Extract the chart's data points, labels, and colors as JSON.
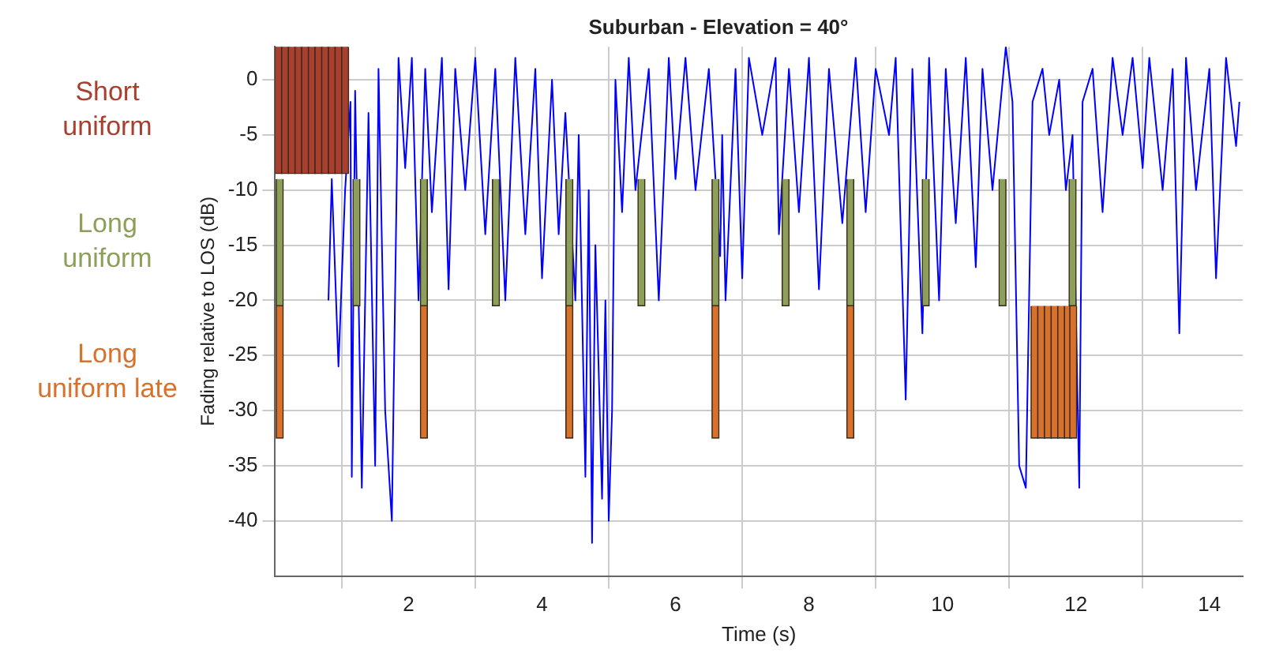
{
  "chart_data": {
    "type": "line",
    "title": "Suburban - Elevation = 40°",
    "xlabel": "Time (s)",
    "ylabel": "Fading relative to LOS (dB)",
    "xlim": [
      0,
      14.5
    ],
    "xticks": [
      2,
      4,
      6,
      8,
      10,
      12,
      14
    ],
    "ylim": [
      -45,
      3
    ],
    "yticks": [
      -40,
      -35,
      -30,
      -25,
      -20,
      -15,
      -10,
      -5,
      0
    ],
    "grid": true,
    "series": [
      {
        "color": "#0000ff",
        "x": [
          0.8,
          0.85,
          0.95,
          1.05,
          1.13,
          1.15,
          1.2,
          1.3,
          1.4,
          1.5,
          1.55,
          1.65,
          1.75,
          1.85,
          1.95,
          2.05,
          2.15,
          2.25,
          2.35,
          2.5,
          2.6,
          2.7,
          2.85,
          3.0,
          3.15,
          3.3,
          3.45,
          3.6,
          3.75,
          3.9,
          4.0,
          4.15,
          4.25,
          4.35,
          4.5,
          4.55,
          4.65,
          4.7,
          4.75,
          4.8,
          4.9,
          4.95,
          5.0,
          5.05,
          5.1,
          5.2,
          5.3,
          5.4,
          5.6,
          5.75,
          5.9,
          6.0,
          6.15,
          6.3,
          6.5,
          6.67,
          6.7,
          6.75,
          6.9,
          7.0,
          7.1,
          7.3,
          7.5,
          7.55,
          7.7,
          7.85,
          8.0,
          8.15,
          8.3,
          8.5,
          8.7,
          8.85,
          9.0,
          9.2,
          9.3,
          9.45,
          9.55,
          9.7,
          9.8,
          9.95,
          10.05,
          10.2,
          10.35,
          10.5,
          10.6,
          10.75,
          10.95,
          11.05,
          11.15,
          11.25,
          11.35,
          11.5,
          11.6,
          11.75,
          11.85,
          11.95,
          12.05,
          12.1,
          12.25,
          12.4,
          12.55,
          12.7,
          12.85,
          13.0,
          13.1,
          13.3,
          13.45,
          13.55,
          13.65,
          13.8,
          14.0,
          14.1,
          14.25,
          14.4,
          14.45
        ],
        "values": [
          -20,
          -9,
          -26,
          -10,
          -2,
          -36,
          -1,
          -37,
          -3,
          -35,
          1,
          -30,
          -40,
          2,
          -8,
          2,
          -20,
          1,
          -12,
          2,
          -19,
          1,
          -10,
          2,
          -14,
          1,
          -20,
          2,
          -14,
          1,
          -18,
          0,
          -14,
          -3,
          -20,
          -5,
          -36,
          -10,
          -42,
          -15,
          -38,
          -20,
          -40,
          -30,
          0,
          -12,
          2,
          -10,
          1,
          -20,
          2,
          -9,
          2,
          -10,
          1,
          -16,
          -5,
          -20,
          1,
          -18,
          2,
          -5,
          2,
          -14,
          1,
          -12,
          2,
          -19,
          1,
          -13,
          2,
          -12,
          1,
          -5,
          2,
          -29,
          1,
          -23,
          2,
          -20,
          1,
          -13,
          2,
          -17,
          1,
          -10,
          3,
          -2,
          -35,
          -37,
          -2,
          1,
          -5,
          0,
          -10,
          -5,
          -37,
          -2,
          1,
          -12,
          2,
          -5,
          2,
          -8,
          2,
          -10,
          1,
          -23,
          2,
          -10,
          1,
          -18,
          2,
          -6,
          -2
        ]
      },
      {
        "type": "bar",
        "name": "Short uniform",
        "color": "#a9402f",
        "x": [
          0.05,
          0.15,
          0.25,
          0.35,
          0.45,
          0.55,
          0.65,
          0.75,
          0.85,
          0.95,
          1.05
        ],
        "base": [
          -8.5,
          -8.5,
          -8.5,
          -8.5,
          -8.5,
          -8.5,
          -8.5,
          -8.5,
          -8.5,
          -8.5,
          -8.5
        ],
        "values": [
          11.5,
          11.5,
          11.5,
          11.5,
          11.5,
          11.5,
          11.5,
          11.5,
          11.5,
          11.5,
          11.5
        ]
      },
      {
        "type": "bar",
        "name": "Long uniform",
        "color": "#8ca05c",
        "x": [
          0.07,
          1.22,
          2.23,
          3.31,
          4.41,
          5.49,
          6.6,
          7.65,
          8.62,
          9.75,
          10.9,
          11.95
        ],
        "base": [
          -20.5,
          -20.5,
          -20.5,
          -20.5,
          -20.5,
          -20.5,
          -20.5,
          -20.5,
          -20.5,
          -20.5,
          -20.5,
          -20.5
        ],
        "values": [
          11.5,
          11.5,
          11.5,
          11.5,
          11.5,
          11.5,
          11.5,
          11.5,
          11.5,
          11.5,
          11.5,
          11.5
        ]
      },
      {
        "type": "bar",
        "name": "Long uniform late",
        "color": "#d8712c",
        "x": [
          0.07,
          2.23,
          4.41,
          6.6,
          8.62,
          11.38,
          11.48,
          11.58,
          11.68,
          11.78,
          11.88,
          11.96
        ],
        "base": [
          -32.5,
          -32.5,
          -32.5,
          -32.5,
          -32.5,
          -32.5,
          -32.5,
          -32.5,
          -32.5,
          -32.5,
          -32.5,
          -32.5
        ],
        "values": [
          12,
          12,
          12,
          12,
          12,
          12,
          12,
          12,
          12,
          12,
          12,
          12
        ]
      }
    ]
  }
}
